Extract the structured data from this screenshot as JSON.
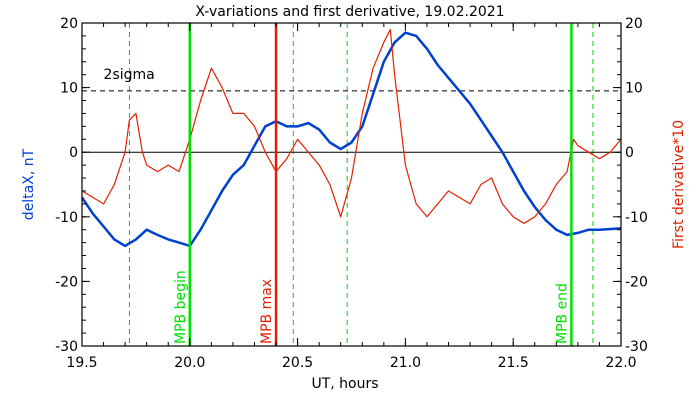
{
  "chart_data": {
    "type": "line",
    "title": "X-variations and first derivative, 19.02.2021",
    "xlabel": "UT, hours",
    "ylabel_left": "deltaX, nT",
    "ylabel_right": "First derivative*10",
    "xlim": [
      19.5,
      22.0
    ],
    "ylim": [
      -30,
      20
    ],
    "xticks": [
      19.5,
      20.0,
      20.5,
      21.0,
      21.5,
      22.0
    ],
    "yticks": [
      -30,
      -20,
      -10,
      0,
      10,
      20
    ],
    "colors": {
      "deltaX": "#0040d0",
      "derivative": "#e02000",
      "mpb_marker": "#00e000",
      "mpb_max": "#e02000",
      "dashed_green": "#00d000",
      "axes": "#000000"
    },
    "threshold": {
      "label": "2sigma",
      "value": 9.5
    },
    "zero_line": 0,
    "markers": [
      {
        "label": "MPB begin",
        "x": 20.0,
        "kind": "mpb_begin"
      },
      {
        "label": "MPB max",
        "x": 20.4,
        "kind": "mpb_max"
      },
      {
        "label": "MPB end",
        "x": 21.77,
        "kind": "mpb_end"
      }
    ],
    "dashed_lines_x": [
      19.72,
      20.48,
      20.73,
      21.87
    ],
    "series": [
      {
        "name": "deltaX",
        "axis": "left",
        "x": [
          19.5,
          19.55,
          19.6,
          19.65,
          19.7,
          19.75,
          19.8,
          19.85,
          19.9,
          19.95,
          20.0,
          20.05,
          20.1,
          20.15,
          20.2,
          20.25,
          20.3,
          20.35,
          20.4,
          20.45,
          20.5,
          20.55,
          20.6,
          20.65,
          20.7,
          20.75,
          20.8,
          20.85,
          20.9,
          20.95,
          21.0,
          21.05,
          21.1,
          21.15,
          21.2,
          21.25,
          21.3,
          21.35,
          21.4,
          21.45,
          21.5,
          21.55,
          21.6,
          21.65,
          21.7,
          21.75,
          21.8,
          21.85,
          21.9,
          22.0
        ],
        "y": [
          -7,
          -9.5,
          -11.5,
          -13.5,
          -14.5,
          -13.5,
          -12,
          -12.8,
          -13.5,
          -14,
          -14.5,
          -12,
          -9,
          -6,
          -3.5,
          -2,
          1,
          4,
          4.8,
          4,
          4,
          4.5,
          3.5,
          1.5,
          0.5,
          1.5,
          4,
          9,
          14,
          17,
          18.5,
          18,
          16,
          13.5,
          11.5,
          9.5,
          7.5,
          5,
          2.5,
          0,
          -3,
          -6,
          -8.5,
          -10.5,
          -12,
          -12.8,
          -12.5,
          -12,
          -12,
          -11.8
        ]
      },
      {
        "name": "First derivative*10",
        "axis": "right",
        "x": [
          19.5,
          19.55,
          19.6,
          19.65,
          19.7,
          19.72,
          19.75,
          19.78,
          19.8,
          19.85,
          19.9,
          19.95,
          20.0,
          20.05,
          20.1,
          20.15,
          20.2,
          20.25,
          20.3,
          20.35,
          20.4,
          20.45,
          20.5,
          20.55,
          20.6,
          20.65,
          20.7,
          20.75,
          20.8,
          20.85,
          20.9,
          20.93,
          20.95,
          21.0,
          21.05,
          21.1,
          21.15,
          21.2,
          21.25,
          21.3,
          21.35,
          21.4,
          21.45,
          21.5,
          21.55,
          21.6,
          21.65,
          21.7,
          21.75,
          21.78,
          21.8,
          21.85,
          21.9,
          21.95,
          22.0
        ],
        "y": [
          -6,
          -7,
          -8,
          -5,
          0,
          5,
          6,
          0,
          -2,
          -3,
          -2,
          -3,
          2,
          8,
          13,
          10,
          6,
          6,
          4,
          0,
          -3,
          -1,
          2,
          0,
          -2,
          -5,
          -10,
          -4,
          6,
          13,
          17,
          19,
          12,
          -2,
          -8,
          -10,
          -8,
          -6,
          -7,
          -8,
          -5,
          -4,
          -8,
          -10,
          -11,
          -10,
          -8,
          -5,
          -3,
          2,
          1,
          0,
          -1,
          0,
          2
        ]
      }
    ]
  }
}
